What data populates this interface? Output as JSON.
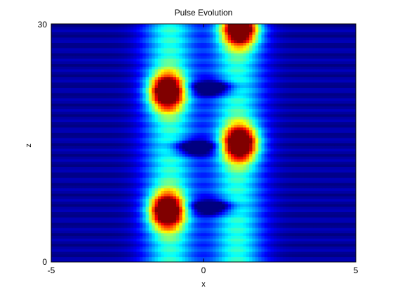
{
  "chart_data": {
    "type": "heatmap",
    "title": "Pulse Evolution",
    "xlabel": "x",
    "ylabel": "z",
    "xlim": [
      -5,
      5
    ],
    "ylim": [
      0,
      30
    ],
    "x_ticks": [
      "-5",
      "0",
      "5"
    ],
    "y_ticks": [
      "0",
      "30"
    ],
    "colormap": "jet",
    "colorbar": false,
    "grid": false,
    "background_color": "#00008f",
    "intensity_peaks": [
      {
        "x": -1.2,
        "z": 6.5,
        "peak": 1.0
      },
      {
        "x": 1.2,
        "z": 15.0,
        "peak": 1.0
      },
      {
        "x": -1.2,
        "z": 21.5,
        "peak": 1.0
      },
      {
        "x": 1.2,
        "z": 29.5,
        "peak": 1.0
      }
    ],
    "intensity_minima": [
      {
        "x": 0.3,
        "z": 7.0
      },
      {
        "x": -0.3,
        "z": 14.5
      },
      {
        "x": 0.3,
        "z": 22.0
      }
    ]
  }
}
